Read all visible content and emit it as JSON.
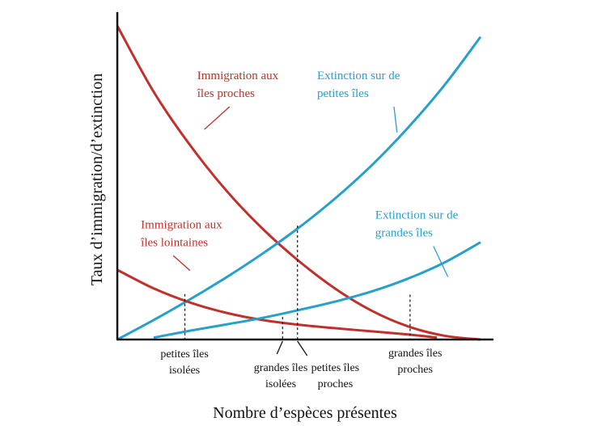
{
  "chart_data": {
    "type": "line",
    "xlabel": "Nombre d’espèces présentes",
    "ylabel": "Taux d’immigration/d’extinction",
    "xlim": [
      0,
      100
    ],
    "ylim": [
      0,
      100
    ],
    "grid": false,
    "legend": "none",
    "series": [
      {
        "name": "Immigration aux îles proches",
        "color": "#c0302c",
        "x": [
          0,
          10,
          20,
          30,
          40,
          50,
          60,
          70,
          80,
          90,
          100
        ],
        "y": [
          100,
          79,
          62,
          47.5,
          35.3,
          25,
          16.2,
          9.2,
          4.2,
          1.2,
          0
        ]
      },
      {
        "name": "Extinction sur de petites îles",
        "color": "#27a0cc",
        "x": [
          0,
          10,
          20,
          30,
          40,
          50,
          60,
          70,
          80,
          90,
          100
        ],
        "y": [
          0,
          6.2,
          12.8,
          19.8,
          27.4,
          35.7,
          45,
          55.5,
          67.5,
          81,
          96.5
        ]
      },
      {
        "name": "Immigration aux îles lointaines",
        "color": "#c0302c",
        "x": [
          0,
          10,
          20,
          30,
          40,
          50,
          60,
          70,
          80,
          88
        ],
        "y": [
          22.2,
          16.3,
          11.8,
          8.5,
          6.2,
          4.7,
          3.6,
          2.6,
          1.6,
          0.6
        ]
      },
      {
        "name": "Extinction sur de grandes îles",
        "color": "#27a0cc",
        "x": [
          10,
          20,
          30,
          40,
          50,
          60,
          70,
          80,
          90,
          100
        ],
        "y": [
          0.6,
          2.8,
          4.8,
          6.9,
          9.4,
          12.1,
          15.3,
          19.4,
          24.5,
          31
        ]
      }
    ],
    "annotations": [
      {
        "series": 0,
        "lines": [
          "Immigration aux",
          "îles proches"
        ],
        "color": "#c0302c",
        "x": 22,
        "y": 83,
        "leader_to": [
          24,
          67
        ]
      },
      {
        "series": 1,
        "lines": [
          "Extinction sur de",
          "petites îles"
        ],
        "color": "#27a0cc",
        "x": 55,
        "y": 83,
        "leader_to": [
          77,
          66
        ]
      },
      {
        "series": 2,
        "lines": [
          "Immigration aux",
          "îles lointaines"
        ],
        "color": "#c0302c",
        "x": 6.5,
        "y": 35.5,
        "leader_to": [
          20,
          22
        ]
      },
      {
        "series": 3,
        "lines": [
          "Extinction sur de",
          "grandes îles"
        ],
        "color": "#27a0cc",
        "x": 71,
        "y": 38.5,
        "leader_to": [
          91,
          20
        ]
      }
    ],
    "equilibria": [
      {
        "x": 18.6,
        "y": 14.5,
        "lines": [
          "petites îles",
          "isolées"
        ],
        "pointer": "plain",
        "text_x": 18.5
      },
      {
        "x": 45.5,
        "y": 7.2,
        "lines": [
          "grandes îles",
          "isolées"
        ],
        "pointer": "left",
        "text_x": 45
      },
      {
        "x": 49.6,
        "y": 36.3,
        "lines": [
          "petites îles",
          "proches"
        ],
        "pointer": "right",
        "text_x": 60
      },
      {
        "x": 80.6,
        "y": 14.3,
        "lines": [
          "grandes îles",
          "proches"
        ],
        "pointer": "plain",
        "text_x": 82
      }
    ]
  }
}
